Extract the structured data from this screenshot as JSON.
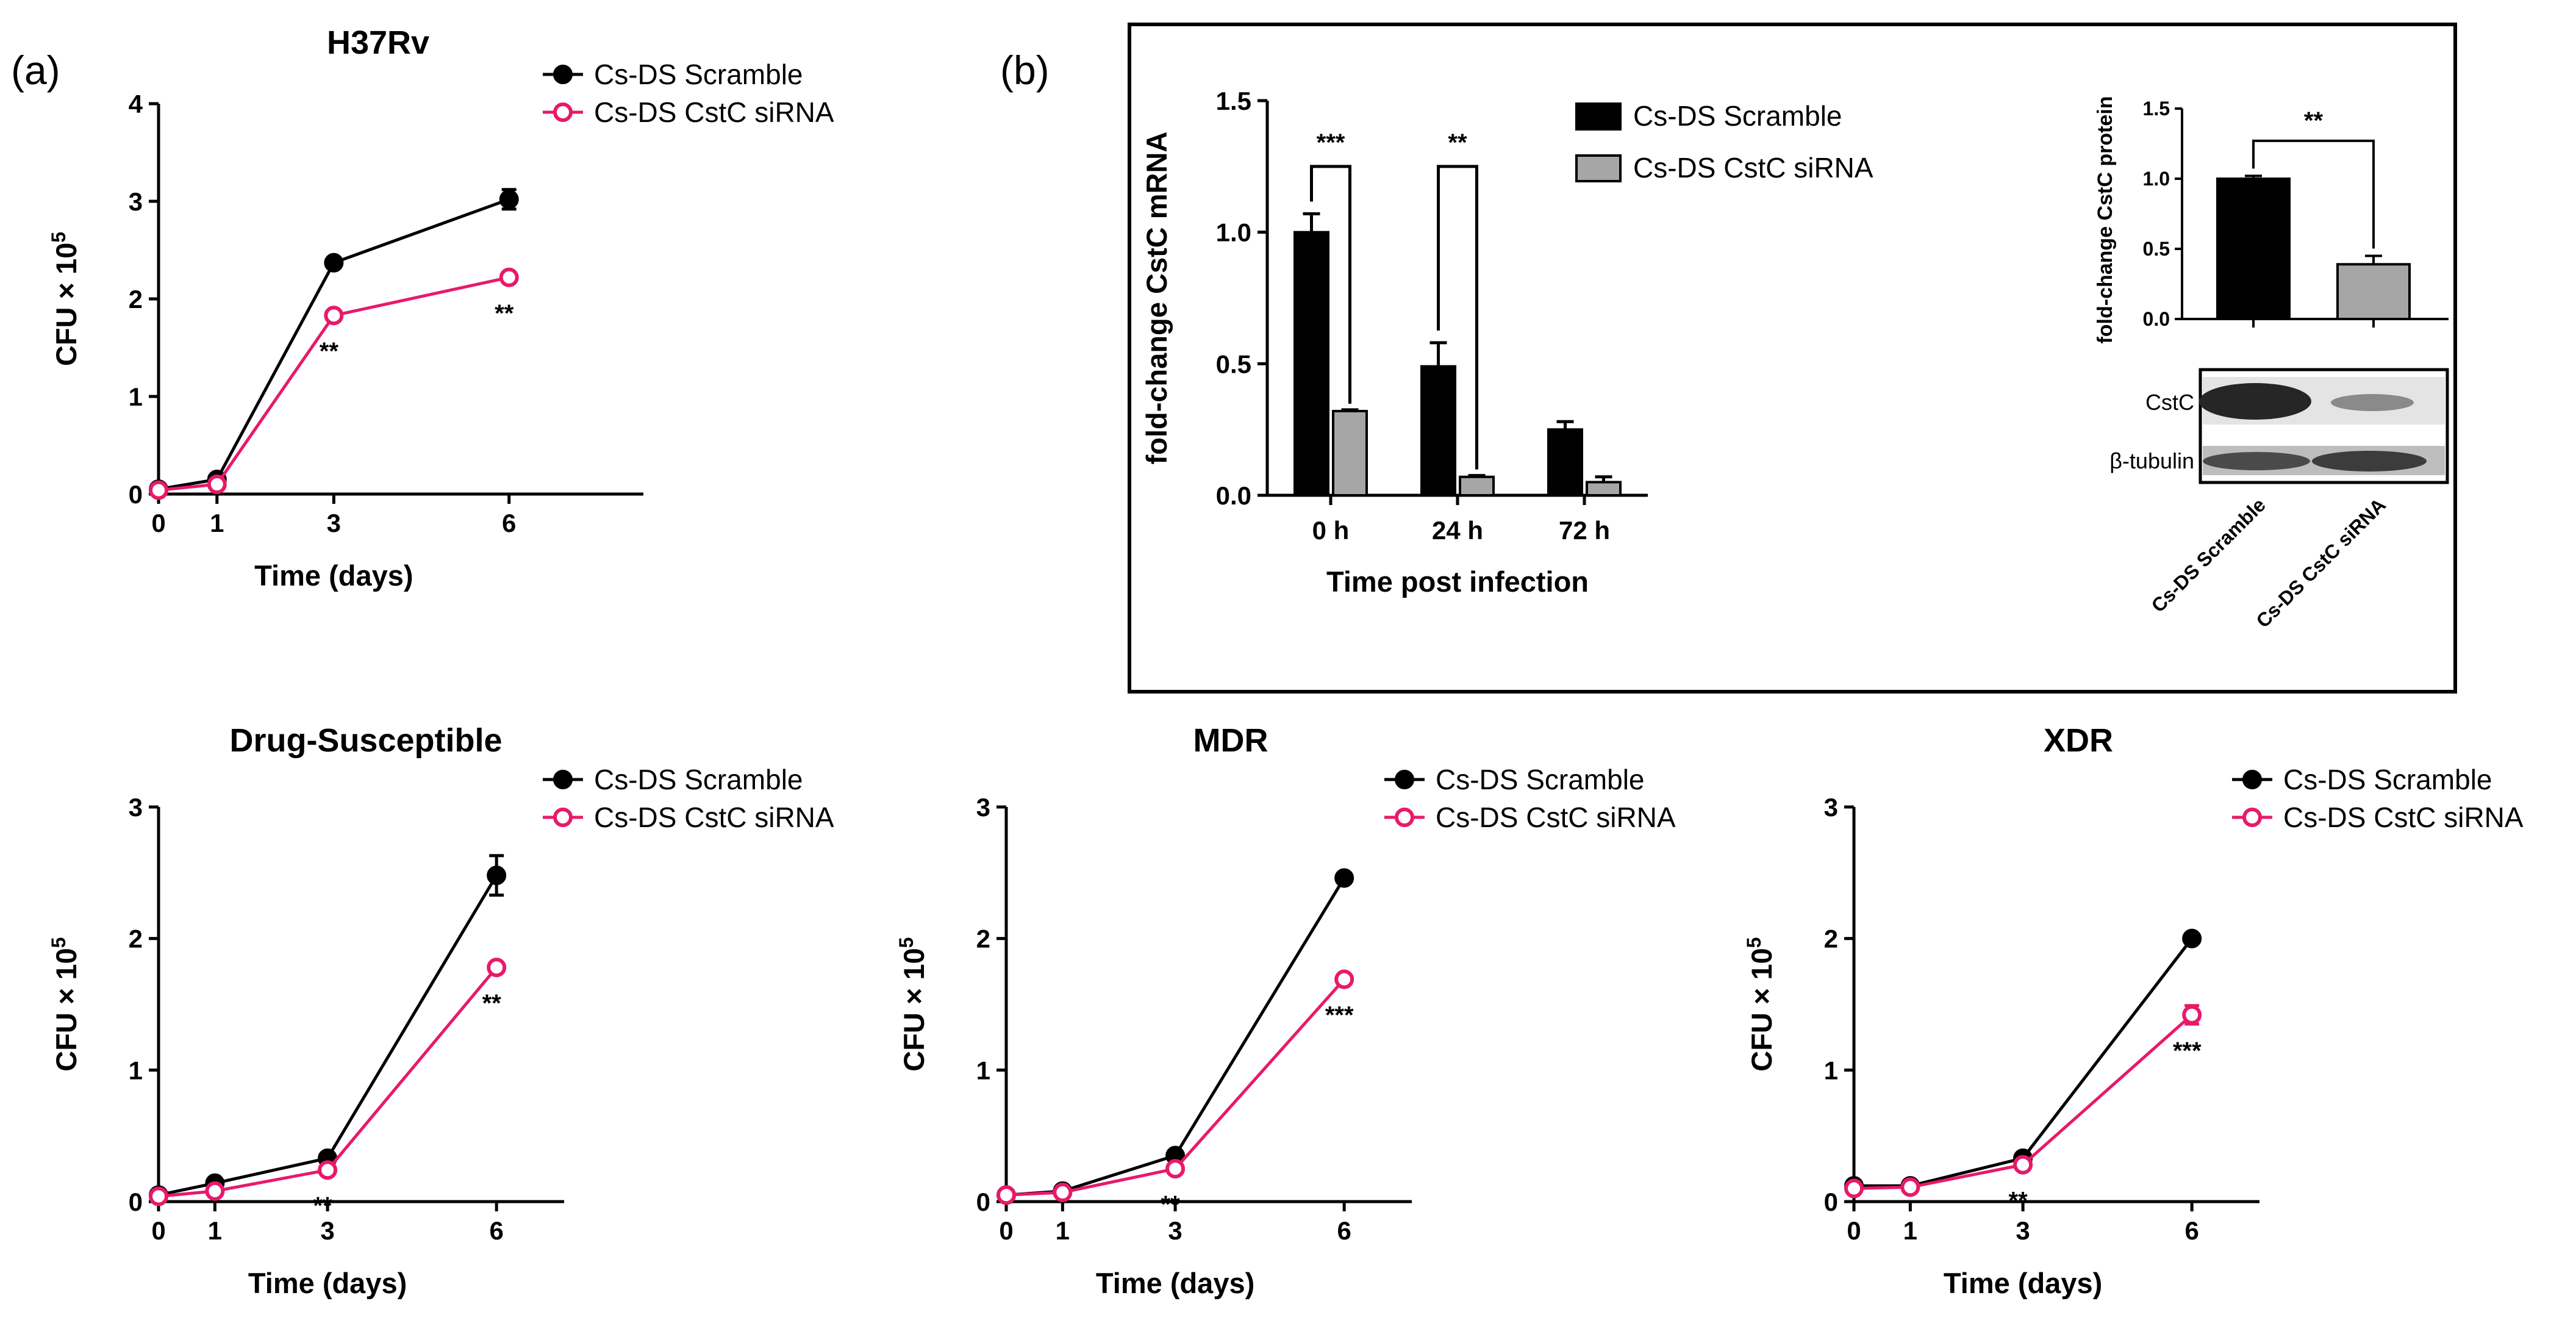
{
  "panels": {
    "a": {
      "letter": "(a)"
    },
    "b": {
      "letter": "(b)"
    }
  },
  "colors": {
    "scramble": "#000000",
    "sirna": "#e8196a",
    "bar_scramble": "#000000",
    "bar_sirna": "#a6a6a6"
  },
  "chart_data": [
    {
      "id": "h37rv",
      "type": "line",
      "title": "H37Rv",
      "xlabel": "Time (days)",
      "ylabel": "CFU × 10",
      "ylabel_sup": "5",
      "x": [
        0,
        1,
        3,
        6
      ],
      "xlim": [
        0,
        8.3
      ],
      "ylim": [
        0,
        4
      ],
      "yticks": [
        0,
        1,
        2,
        3,
        4
      ],
      "series": [
        {
          "name": "Cs-DS Scramble",
          "values": [
            0.05,
            0.15,
            2.37,
            3.02
          ],
          "errors": [
            0.02,
            0.03,
            0.07,
            0.1
          ]
        },
        {
          "name": "Cs-DS CstC siRNA",
          "values": [
            0.04,
            0.1,
            1.83,
            2.22
          ],
          "errors": [
            0.01,
            0.01,
            0.04,
            0.04
          ]
        }
      ],
      "annotations": [
        {
          "x": 3,
          "text": "**"
        },
        {
          "x": 6,
          "text": "**"
        }
      ],
      "legend_position": "top-right"
    },
    {
      "id": "drug-susceptible",
      "type": "line",
      "title": "Drug-Susceptible",
      "xlabel": "Time (days)",
      "ylabel": "CFU × 10",
      "ylabel_sup": "5",
      "x": [
        0,
        1,
        3,
        6
      ],
      "xlim": [
        0,
        7.2
      ],
      "ylim": [
        0,
        3
      ],
      "yticks": [
        0,
        1,
        2,
        3
      ],
      "series": [
        {
          "name": "Cs-DS Scramble",
          "values": [
            0.05,
            0.14,
            0.33,
            2.48
          ],
          "errors": [
            0.01,
            0.01,
            0.02,
            0.15
          ]
        },
        {
          "name": "Cs-DS CstC siRNA",
          "values": [
            0.04,
            0.08,
            0.24,
            1.78
          ],
          "errors": [
            0.01,
            0.01,
            0.02,
            0.04
          ]
        }
      ],
      "annotations": [
        {
          "x": 3,
          "text": "**"
        },
        {
          "x": 6,
          "text": "**"
        }
      ],
      "legend_position": "top-right"
    },
    {
      "id": "mdr",
      "type": "line",
      "title": "MDR",
      "xlabel": "Time (days)",
      "ylabel": "CFU × 10",
      "ylabel_sup": "5",
      "x": [
        0,
        1,
        3,
        6
      ],
      "xlim": [
        0,
        7.2
      ],
      "ylim": [
        0,
        3
      ],
      "yticks": [
        0,
        1,
        2,
        3
      ],
      "series": [
        {
          "name": "Cs-DS Scramble",
          "values": [
            0.05,
            0.08,
            0.35,
            2.46
          ],
          "errors": [
            0.01,
            0.01,
            0.02,
            0.03
          ]
        },
        {
          "name": "Cs-DS CstC siRNA",
          "values": [
            0.05,
            0.07,
            0.25,
            1.69
          ],
          "errors": [
            0.01,
            0.01,
            0.02,
            0.04
          ]
        }
      ],
      "annotations": [
        {
          "x": 3,
          "text": "**"
        },
        {
          "x": 6,
          "text": "***"
        }
      ],
      "legend_position": "top-right"
    },
    {
      "id": "xdr",
      "type": "line",
      "title": "XDR",
      "xlabel": "Time (days)",
      "ylabel": "CFU × 10",
      "ylabel_sup": "5",
      "x": [
        0,
        1,
        3,
        6
      ],
      "xlim": [
        0,
        7.2
      ],
      "ylim": [
        0,
        3
      ],
      "yticks": [
        0,
        1,
        2,
        3
      ],
      "series": [
        {
          "name": "Cs-DS Scramble",
          "values": [
            0.12,
            0.12,
            0.33,
            2.0
          ],
          "errors": [
            0.01,
            0.01,
            0.02,
            0.05
          ]
        },
        {
          "name": "Cs-DS CstC siRNA",
          "values": [
            0.1,
            0.11,
            0.28,
            1.42
          ],
          "errors": [
            0.01,
            0.01,
            0.02,
            0.07
          ]
        }
      ],
      "annotations": [
        {
          "x": 3,
          "text": "**"
        },
        {
          "x": 6,
          "text": "***"
        }
      ],
      "legend_position": "top-right"
    },
    {
      "id": "mrna",
      "type": "bar",
      "title": "",
      "xlabel": "Time post infection",
      "ylabel": "fold-change CstC mRNA",
      "categories": [
        "0 h",
        "24 h",
        "72 h"
      ],
      "ylim": [
        0,
        1.5
      ],
      "yticks": [
        "0.0",
        "0.5",
        "1.0",
        "1.5"
      ],
      "series": [
        {
          "name": "Cs-DS Scramble",
          "values": [
            1.0,
            0.49,
            0.25
          ],
          "errors": [
            0.07,
            0.09,
            0.03
          ]
        },
        {
          "name": "Cs-DS CstC siRNA",
          "values": [
            0.32,
            0.07,
            0.05
          ],
          "errors": [
            0.005,
            0.005,
            0.02
          ]
        }
      ],
      "annotations": [
        {
          "category": "0 h",
          "text": "***"
        },
        {
          "category": "24 h",
          "text": "**"
        }
      ],
      "legend_position": "top-right"
    },
    {
      "id": "protein",
      "type": "bar",
      "title": "",
      "xlabel": "",
      "ylabel": "fold-change CstC protein",
      "categories": [
        "Cs-DS Scramble",
        "Cs-DS CstC siRNA"
      ],
      "ylim": [
        0,
        1.5
      ],
      "yticks": [
        "0.0",
        "0.5",
        "1.0",
        "1.5"
      ],
      "series": [
        {
          "name": "",
          "values": [
            1.0,
            0.39
          ],
          "errors": [
            0.02,
            0.06
          ]
        }
      ],
      "annotations": [
        {
          "text": "**"
        }
      ],
      "blot_labels": [
        "CstC",
        "β-tubulin"
      ]
    }
  ]
}
